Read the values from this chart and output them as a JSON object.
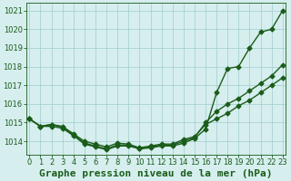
{
  "title": "Graphe pression niveau de la mer (hPa)",
  "x": [
    0,
    1,
    2,
    3,
    4,
    5,
    6,
    7,
    8,
    9,
    10,
    11,
    12,
    13,
    14,
    15,
    16,
    17,
    18,
    19,
    20,
    21,
    22,
    23
  ],
  "line1": [
    1015.2,
    1014.8,
    1014.9,
    1014.8,
    1014.4,
    1014.0,
    1013.85,
    1013.7,
    1013.9,
    1013.85,
    1013.65,
    1013.75,
    1013.85,
    1013.85,
    1014.1,
    1014.25,
    1014.9,
    1015.2,
    1015.5,
    1015.9,
    1016.2,
    1016.6,
    1017.0,
    1017.4
  ],
  "line2": [
    1015.2,
    1014.8,
    1014.9,
    1014.75,
    1014.35,
    1013.9,
    1013.75,
    1013.6,
    1013.8,
    1013.8,
    1013.6,
    1013.7,
    1013.8,
    1013.8,
    1014.0,
    1014.2,
    1015.0,
    1015.6,
    1016.0,
    1016.3,
    1016.7,
    1017.1,
    1017.5,
    1018.1
  ],
  "line3": [
    1015.2,
    1014.8,
    1014.8,
    1014.7,
    1014.3,
    1013.85,
    1013.7,
    1013.55,
    1013.75,
    1013.75,
    1013.6,
    1013.65,
    1013.75,
    1013.75,
    1013.9,
    1014.15,
    1014.65,
    1016.6,
    1017.9,
    1018.0,
    1019.0,
    1019.85,
    1020.0,
    1021.0
  ],
  "bg_color": "#d6eeee",
  "grid_color": "#a0cccc",
  "line_color": "#1a5c1a",
  "marker": "D",
  "marker_size": 2.5,
  "ylim": [
    1013.3,
    1021.4
  ],
  "yticks": [
    1014,
    1015,
    1016,
    1017,
    1018,
    1019,
    1020,
    1021
  ],
  "xlim": [
    -0.3,
    23.3
  ],
  "title_fontsize": 8,
  "tick_fontsize": 6,
  "line_width": 1.0
}
